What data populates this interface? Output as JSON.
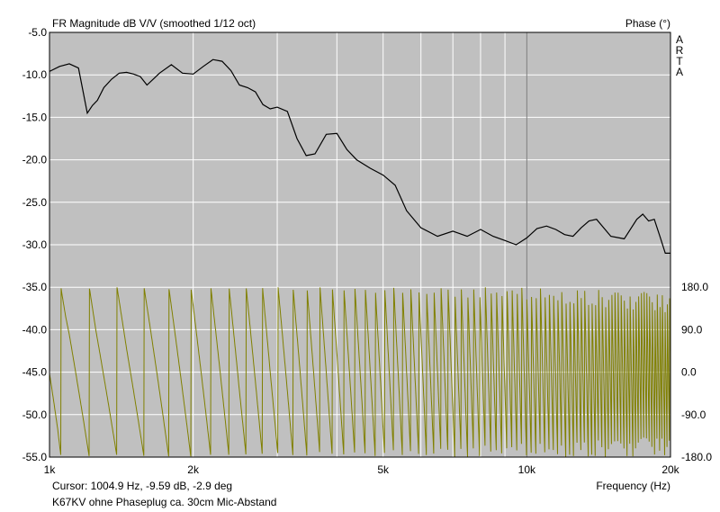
{
  "chart_data": {
    "type": "line",
    "title": "FR Magnitude dB V/V (smoothed 1/12 oct)",
    "y2label": "Phase (°)",
    "xlabel": "Frequency (Hz)",
    "watermark": "ARTA",
    "cursor_text": "Cursor: 1004.9 Hz, -9.59 dB, -2.9 deg",
    "caption": "K67KV ohne Phaseplug ca. 30cm Mic-Abstand",
    "x_scale": "log",
    "xlim": [
      1000,
      20000
    ],
    "ylim": [
      -55,
      -5
    ],
    "y2lim": [
      -180,
      180
    ],
    "x_ticks": [
      {
        "value": 1000,
        "label": "1k"
      },
      {
        "value": 2000,
        "label": "2k"
      },
      {
        "value": 5000,
        "label": "5k"
      },
      {
        "value": 10000,
        "label": "10k"
      },
      {
        "value": 20000,
        "label": "20k"
      }
    ],
    "y_ticks": [
      {
        "value": -5,
        "label": "-5.0"
      },
      {
        "value": -10,
        "label": "-10.0"
      },
      {
        "value": -15,
        "label": "-15.0"
      },
      {
        "value": -20,
        "label": "-20.0"
      },
      {
        "value": -25,
        "label": "-25.0"
      },
      {
        "value": -30,
        "label": "-30.0"
      },
      {
        "value": -35,
        "label": "-35.0"
      },
      {
        "value": -40,
        "label": "-40.0"
      },
      {
        "value": -45,
        "label": "-45.0"
      },
      {
        "value": -50,
        "label": "-50.0"
      },
      {
        "value": -55,
        "label": "-55.0"
      }
    ],
    "y2_ticks": [
      {
        "value": 180,
        "label": "180.0"
      },
      {
        "value": 90,
        "label": "90.0"
      },
      {
        "value": 0,
        "label": "0.0"
      },
      {
        "value": -90,
        "label": "-90.0"
      },
      {
        "value": -180,
        "label": "-180.0"
      }
    ],
    "grid": true,
    "colors": {
      "plot_bg": "#c0c0c0",
      "grid": "#ffffff",
      "decade_grid": "#7f7f7f",
      "magnitude": "#000000",
      "phase": "#808000"
    },
    "series": [
      {
        "axis": "left",
        "x": [
          1000,
          1050,
          1100,
          1150,
          1200,
          1230,
          1260,
          1300,
          1350,
          1400,
          1450,
          1500,
          1550,
          1600,
          1650,
          1700,
          1800,
          1900,
          2000,
          2100,
          2200,
          2300,
          2400,
          2500,
          2600,
          2700,
          2800,
          2900,
          3000,
          3150,
          3300,
          3450,
          3600,
          3800,
          4000,
          4200,
          4400,
          4700,
          5000,
          5300,
          5600,
          6000,
          6500,
          7000,
          7500,
          8000,
          8500,
          9000,
          9500,
          10000,
          10500,
          11000,
          11500,
          12000,
          12500,
          13000,
          13500,
          14000,
          15000,
          16000,
          17000,
          17500,
          18000,
          18500,
          19000,
          19500,
          20000
        ],
        "y": [
          -9.6,
          -9.0,
          -8.7,
          -9.2,
          -14.5,
          -13.6,
          -13.0,
          -11.5,
          -10.5,
          -9.8,
          -9.7,
          -9.9,
          -10.2,
          -11.2,
          -10.5,
          -9.8,
          -8.8,
          -9.8,
          -9.9,
          -9.0,
          -8.2,
          -8.4,
          -9.5,
          -11.2,
          -11.5,
          -12.0,
          -13.5,
          -14.0,
          -13.8,
          -14.3,
          -17.5,
          -19.5,
          -19.3,
          -17.0,
          -16.9,
          -18.8,
          -20.0,
          -21.0,
          -21.8,
          -23.0,
          -26.0,
          -28.0,
          -29.0,
          -28.4,
          -29.0,
          -28.2,
          -29.0,
          -29.5,
          -30.0,
          -29.2,
          -28.1,
          -27.8,
          -28.2,
          -28.8,
          -29.0,
          -28.0,
          -27.2,
          -27.0,
          -29.0,
          -29.3,
          -27.0,
          -26.4,
          -27.2,
          -27.0,
          -29.0,
          -31.0,
          -31.0
        ]
      },
      {
        "axis": "right",
        "wrap_deg": 180,
        "x": [
          1000,
          1020,
          1040,
          1060,
          1080,
          1100,
          1130,
          1160,
          1190,
          1220,
          1250,
          1300,
          1350,
          1400,
          1450,
          1500,
          1550,
          1600,
          1650,
          1700,
          1750,
          1800,
          1850,
          1900,
          1950,
          2000,
          2050,
          2100,
          2150,
          2200,
          2250,
          2300,
          2350,
          2400,
          2450,
          2500,
          2600,
          2700,
          2800,
          2900,
          3000,
          3100,
          3200,
          3300,
          3400,
          3500,
          3600,
          3700,
          3800,
          3900,
          4000,
          4200,
          4400,
          4600,
          4800,
          5000,
          5200,
          5400,
          5600,
          5800,
          6000,
          6200,
          6400,
          6600,
          6800,
          7000,
          7200,
          7400,
          7600,
          7800,
          8000,
          8200,
          8400,
          8600,
          8800,
          9000,
          9200,
          9400,
          9600,
          9800,
          10000,
          10500,
          11000,
          11500,
          12000,
          12500,
          13000,
          13500,
          14000,
          14500,
          15000,
          15500,
          16000,
          16500,
          17000,
          17500,
          18000,
          18500,
          19000,
          19500,
          20000
        ],
        "y": [
          -2.9,
          -60,
          -120,
          -190,
          -240,
          -280,
          -350,
          -420,
          -490,
          -560,
          -630,
          -730,
          -830,
          -930,
          -1030,
          -1120,
          -1210,
          -1300,
          -1390,
          -1480,
          -1570,
          -1660,
          -1750,
          -1840,
          -1930,
          -2020,
          -2110,
          -2200,
          -2290,
          -2380,
          -2470,
          -2560,
          -2650,
          -2740,
          -2830,
          -2920,
          -3090,
          -3260,
          -3430,
          -3600,
          -3760,
          -3920,
          -4080,
          -4240,
          -4400,
          -4560,
          -4720,
          -4880,
          -5040,
          -5200,
          -5360,
          -5680,
          -6000,
          -6320,
          -6640,
          -6960,
          -7280,
          -7600,
          -7920,
          -8240,
          -8560,
          -8880,
          -9200,
          -9520,
          -9840,
          -10160,
          -10480,
          -10800,
          -11120,
          -11440,
          -11760,
          -12080,
          -12400,
          -12720,
          -13040,
          -13360,
          -13680,
          -14000,
          -14320,
          -14640,
          -14960,
          -15740,
          -16520,
          -17300,
          -18080,
          -18860,
          -19640,
          -20420,
          -21200,
          -21980,
          -22760,
          -23540,
          -24320,
          -25100,
          -25880,
          -26660,
          -27440,
          -28220,
          -29000,
          -29780,
          -30560
        ]
      }
    ]
  }
}
